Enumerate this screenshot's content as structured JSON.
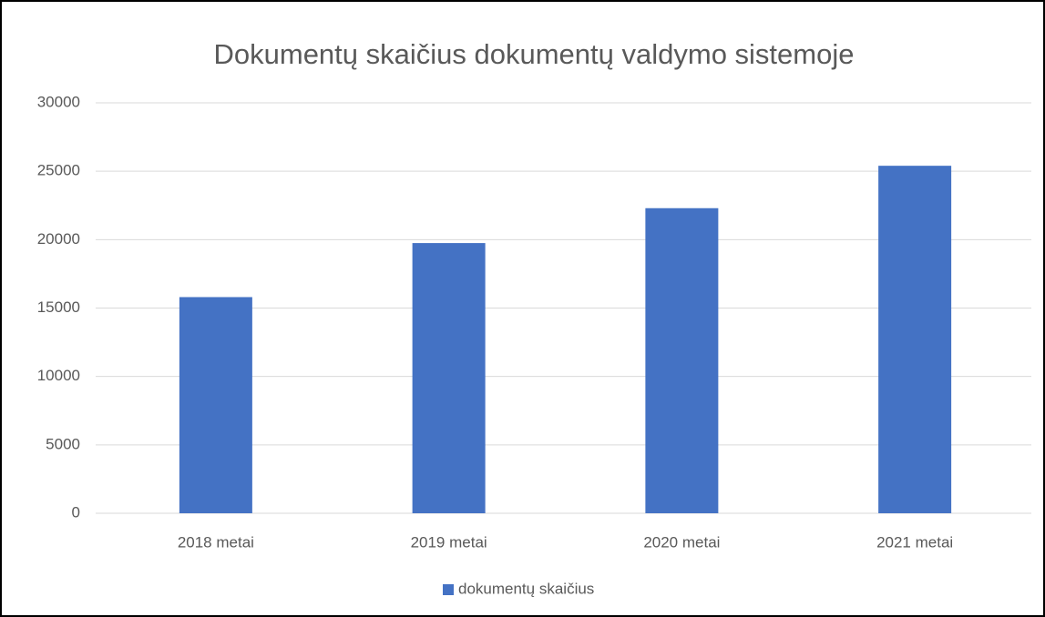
{
  "chart_data": {
    "type": "bar",
    "title": "Dokumentų skaičius dokumentų valdymo sistemoje",
    "categories": [
      "2018 metai",
      "2019 metai",
      "2020 metai",
      "2021 metai"
    ],
    "series": [
      {
        "name": "dokumentų skaičius",
        "color": "#4472c4",
        "values": [
          15800,
          19750,
          22300,
          25400
        ]
      }
    ],
    "ylim": [
      0,
      30000
    ],
    "yticks": [
      0,
      5000,
      10000,
      15000,
      20000,
      25000,
      30000
    ],
    "grid": true,
    "legend": "bottom"
  }
}
